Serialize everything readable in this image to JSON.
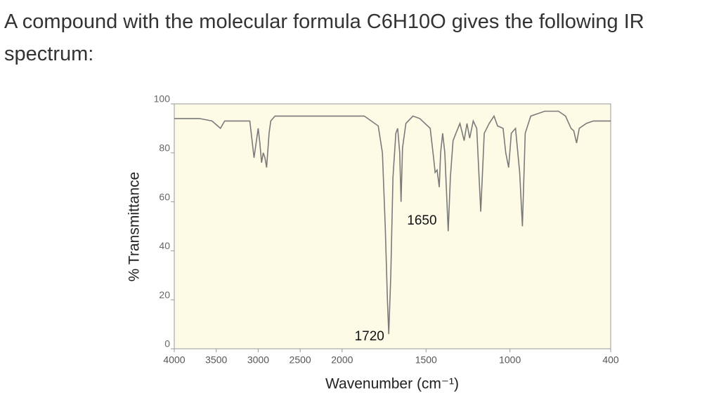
{
  "chart_data": {
    "type": "line",
    "title": "A compound with the molecular formula C6H10O gives the following IR spectrum:",
    "xlabel": "Wavenumber (cm⁻¹)",
    "ylabel": "% Transmittance",
    "x": [
      4000,
      3700,
      3550,
      3450,
      3400,
      3100,
      3050,
      3000,
      2980,
      2960,
      2940,
      2920,
      2900,
      2870,
      2850,
      2800,
      2500,
      2100,
      1868,
      1785,
      1760,
      1743,
      1730,
      1722,
      1710,
      1697,
      1680,
      1669,
      1657,
      1649,
      1640,
      1620,
      1578,
      1537,
      1475,
      1455,
      1446,
      1434,
      1421,
      1413,
      1401,
      1388,
      1368,
      1355,
      1339,
      1322,
      1298,
      1273,
      1256,
      1240,
      1219,
      1198,
      1174,
      1153,
      1124,
      1095,
      1074,
      1041,
      1025,
      1008,
      992,
      967,
      942,
      926,
      909,
      876,
      793,
      711,
      669,
      636,
      620,
      603,
      587,
      545,
      504,
      462,
      400
    ],
    "values": [
      94,
      94,
      93,
      90,
      93,
      93,
      78,
      90,
      84,
      76,
      80,
      78,
      74,
      88,
      93,
      95,
      95,
      95,
      95,
      91,
      80,
      50,
      20,
      6,
      30,
      70,
      88,
      90,
      80,
      60,
      82,
      92,
      95,
      94,
      90,
      78,
      72,
      73,
      66,
      80,
      88,
      80,
      48,
      70,
      85,
      88,
      92,
      85,
      92,
      86,
      93,
      90,
      56,
      88,
      92,
      95,
      91,
      90,
      80,
      74,
      88,
      90,
      72,
      50,
      88,
      95,
      97,
      97,
      95,
      90,
      89,
      84,
      90,
      92,
      93,
      93,
      93
    ],
    "color": "#7a7a7a",
    "xlim": [
      4000,
      400
    ],
    "x_scale_break": 2000,
    "xticks": [
      4000,
      3500,
      3000,
      2500,
      2000,
      1500,
      1000,
      400
    ],
    "ylim": [
      0,
      100
    ],
    "yticks": [
      0,
      20,
      40,
      60,
      80,
      100
    ],
    "annotations": [
      1720,
      1650
    ]
  }
}
